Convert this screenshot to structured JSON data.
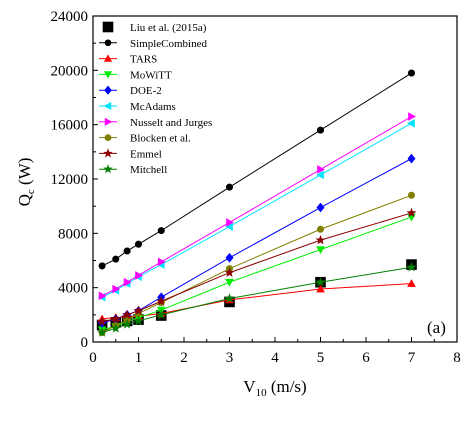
{
  "chart_data": {
    "type": "scatter",
    "xlabel": "V",
    "xlabel_sub": "10",
    "xlabel_unit": " (m/s)",
    "ylabel": "Q",
    "ylabel_sub": "c",
    "ylabel_unit": " (W)",
    "panel_label": "(a)",
    "xlim": [
      0,
      8
    ],
    "ylim": [
      0,
      24000
    ],
    "xticks": [
      0,
      1,
      2,
      3,
      4,
      5,
      6,
      7,
      8
    ],
    "yticks": [
      0,
      4000,
      8000,
      12000,
      16000,
      20000,
      24000
    ],
    "grid": false,
    "legend_position": "top-left",
    "x": [
      0.2,
      0.5,
      0.75,
      1.0,
      1.5,
      3.0,
      5.0,
      7.0
    ],
    "series": [
      {
        "name": "Liu et al. (2015a)",
        "marker": "square",
        "color": "#000000",
        "line": false,
        "values": [
          1250,
          1450,
          1550,
          1650,
          1950,
          2950,
          4400,
          5700
        ]
      },
      {
        "name": "SimpleCombined",
        "marker": "circle",
        "color": "#000000",
        "line": true,
        "values": [
          5600,
          6100,
          6700,
          7200,
          8200,
          11400,
          15600,
          19800
        ]
      },
      {
        "name": "TARS",
        "marker": "triangle-up",
        "color": "#ff0000",
        "line": true,
        "values": [
          1700,
          1800,
          1850,
          1900,
          2100,
          3100,
          3900,
          4300
        ]
      },
      {
        "name": "MoWiTT",
        "marker": "triangle-down",
        "color": "#00ee00",
        "line": true,
        "values": [
          900,
          1150,
          1500,
          1800,
          2350,
          4400,
          6800,
          9200
        ]
      },
      {
        "name": "DOE-2",
        "marker": "diamond",
        "color": "#0000ff",
        "line": true,
        "values": [
          1400,
          1700,
          2000,
          2300,
          3300,
          6200,
          9900,
          13500
        ]
      },
      {
        "name": "McAdams",
        "marker": "triangle-left",
        "color": "#00e5ff",
        "line": true,
        "values": [
          3300,
          3800,
          4300,
          4800,
          5700,
          8500,
          12300,
          16100
        ]
      },
      {
        "name": "Nusselt and Jurges",
        "marker": "triangle-right",
        "color": "#ff00ff",
        "line": true,
        "values": [
          3400,
          3900,
          4400,
          4900,
          5900,
          8800,
          12700,
          16600
        ]
      },
      {
        "name": "Blocken et al.",
        "marker": "circle",
        "color": "#808000",
        "line": true,
        "values": [
          700,
          1200,
          1600,
          2100,
          2900,
          5400,
          8300,
          10800
        ]
      },
      {
        "name": "Emmel",
        "marker": "star",
        "color": "#8b0000",
        "line": true,
        "values": [
          1500,
          1700,
          2000,
          2300,
          3000,
          5100,
          7500,
          9500
        ]
      },
      {
        "name": "Mitchell",
        "marker": "star",
        "color": "#008000",
        "line": true,
        "values": [
          700,
          1000,
          1300,
          1550,
          2000,
          3200,
          4400,
          5500
        ]
      }
    ]
  }
}
